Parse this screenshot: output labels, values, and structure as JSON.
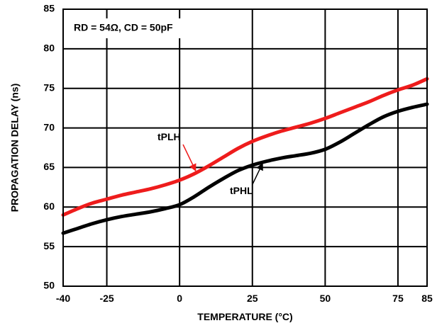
{
  "chart_data": {
    "type": "line",
    "title": "",
    "xlabel": "TEMPERATURE (°C)",
    "ylabel": "PROPAGATION DELAY (ns)",
    "xlim": [
      -40,
      85
    ],
    "ylim": [
      50,
      85
    ],
    "x_ticks": [
      -40,
      -25,
      0,
      25,
      50,
      75,
      85
    ],
    "y_ticks": [
      50,
      55,
      60,
      65,
      70,
      75,
      80,
      85
    ],
    "grid": true,
    "condition_label": "RD = 54Ω, CD = 50pF",
    "series": [
      {
        "name": "tPLH",
        "color": "#ee1c1c",
        "x": [
          -40,
          -35,
          -30,
          -25,
          -20,
          -15,
          -10,
          -5,
          0,
          5,
          10,
          15,
          20,
          25,
          30,
          35,
          40,
          45,
          50,
          55,
          60,
          65,
          70,
          75,
          80,
          85
        ],
        "y": [
          59.0,
          59.8,
          60.5,
          61.0,
          61.5,
          61.9,
          62.3,
          62.8,
          63.4,
          64.2,
          65.2,
          66.3,
          67.4,
          68.3,
          69.0,
          69.6,
          70.1,
          70.6,
          71.2,
          71.9,
          72.6,
          73.3,
          74.1,
          74.8,
          75.4,
          76.2
        ]
      },
      {
        "name": "tPHL",
        "color": "#000000",
        "x": [
          -40,
          -35,
          -30,
          -25,
          -20,
          -15,
          -10,
          -5,
          0,
          5,
          10,
          15,
          20,
          25,
          30,
          35,
          40,
          45,
          50,
          55,
          60,
          65,
          70,
          75,
          80,
          85
        ],
        "y": [
          56.7,
          57.3,
          57.9,
          58.4,
          58.8,
          59.1,
          59.4,
          59.8,
          60.3,
          61.3,
          62.5,
          63.6,
          64.6,
          65.3,
          65.8,
          66.2,
          66.5,
          66.8,
          67.3,
          68.2,
          69.3,
          70.4,
          71.4,
          72.1,
          72.6,
          73.0
        ]
      }
    ],
    "annotations": [
      {
        "text": "tPLH",
        "series": "tPLH",
        "points_to_x": 6
      },
      {
        "text": "tPHL",
        "series": "tPHL",
        "points_to_x": 29
      }
    ]
  }
}
